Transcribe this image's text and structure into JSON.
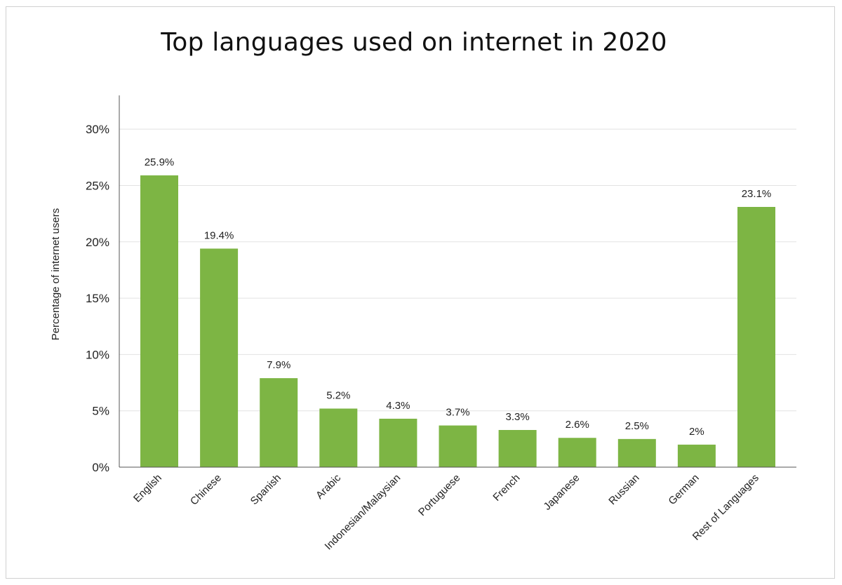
{
  "chart_data": {
    "type": "bar",
    "title": "Top languages used on internet in 2020",
    "xlabel": "",
    "ylabel": "Percentage of internet users",
    "ylim": [
      0,
      33
    ],
    "yticks": [
      0,
      5,
      10,
      15,
      20,
      25,
      30
    ],
    "ytick_labels": [
      "0%",
      "5%",
      "10%",
      "15%",
      "20%",
      "25%",
      "30%"
    ],
    "grid": true,
    "bar_color": "#7db544",
    "categories": [
      "English",
      "Chinese",
      "Spanish",
      "Arabic",
      "Indonesian/Malaysian",
      "Portuguese",
      "French",
      "Japanese",
      "Russian",
      "German",
      "Rest of Languages"
    ],
    "values": [
      25.9,
      19.4,
      7.9,
      5.2,
      4.3,
      3.7,
      3.3,
      2.6,
      2.5,
      2,
      23.1
    ],
    "value_labels": [
      "25.9%",
      "19.4%",
      "7.9%",
      "5.2%",
      "4.3%",
      "3.7%",
      "3.3%",
      "2.6%",
      "2.5%",
      "2%",
      "23.1%"
    ]
  }
}
